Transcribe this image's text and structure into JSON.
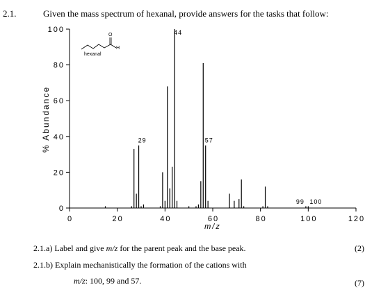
{
  "question": {
    "number": "2.1.",
    "text": "Given the mass spectrum of hexanal, provide answers for the tasks that follow:"
  },
  "molecule": {
    "name": "hexanal",
    "atom_O": "O",
    "atom_H": "H"
  },
  "chart_data": {
    "type": "bar",
    "ylabel": "% Abundance",
    "xlabel": "m/z",
    "xlim": [
      0,
      120
    ],
    "ylim": [
      0,
      100
    ],
    "xticks": [
      0,
      20,
      40,
      60,
      80,
      100,
      120
    ],
    "yticks": [
      0,
      20,
      40,
      60,
      80,
      100
    ],
    "peaks": [
      {
        "mz": 15,
        "value": 1
      },
      {
        "mz": 26,
        "value": 1
      },
      {
        "mz": 27,
        "value": 33
      },
      {
        "mz": 28,
        "value": 8
      },
      {
        "mz": 29,
        "value": 35
      },
      {
        "mz": 30,
        "value": 1
      },
      {
        "mz": 31,
        "value": 2
      },
      {
        "mz": 38,
        "value": 1
      },
      {
        "mz": 39,
        "value": 20
      },
      {
        "mz": 40,
        "value": 4
      },
      {
        "mz": 41,
        "value": 68
      },
      {
        "mz": 42,
        "value": 11
      },
      {
        "mz": 43,
        "value": 23
      },
      {
        "mz": 44,
        "value": 100
      },
      {
        "mz": 45,
        "value": 4
      },
      {
        "mz": 50,
        "value": 1
      },
      {
        "mz": 53,
        "value": 1
      },
      {
        "mz": 54,
        "value": 2
      },
      {
        "mz": 55,
        "value": 15
      },
      {
        "mz": 56,
        "value": 81
      },
      {
        "mz": 57,
        "value": 35
      },
      {
        "mz": 58,
        "value": 4
      },
      {
        "mz": 67,
        "value": 8
      },
      {
        "mz": 69,
        "value": 4
      },
      {
        "mz": 71,
        "value": 5
      },
      {
        "mz": 72,
        "value": 16
      },
      {
        "mz": 73,
        "value": 1
      },
      {
        "mz": 81,
        "value": 1
      },
      {
        "mz": 82,
        "value": 12
      },
      {
        "mz": 83,
        "value": 1
      },
      {
        "mz": 99,
        "value": 1
      },
      {
        "mz": 100,
        "value": 1
      }
    ],
    "peak_labels": [
      {
        "mz": 44,
        "text": "44"
      },
      {
        "mz": 57,
        "text": "57"
      },
      {
        "mz": 29,
        "text": "29"
      },
      {
        "mz": 99,
        "text": "99"
      },
      {
        "mz": 100,
        "text": "100"
      }
    ]
  },
  "tasks": [
    {
      "id": "2.1.a)",
      "line1_before": "Label and give ",
      "line1_italic": "m/z",
      "line1_after": " for the parent peak and the base peak.",
      "marks": "(2)"
    },
    {
      "id": "2.1.b)",
      "line1": "Explain mechanistically the formation of the cations with",
      "line2_italic": "m/z",
      "line2_after": ": 100, 99 and 57.",
      "marks": "(7)"
    }
  ]
}
